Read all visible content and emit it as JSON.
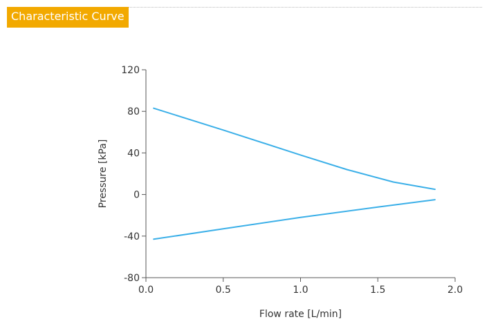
{
  "section": {
    "title": "Characteristic Curve"
  },
  "colors": {
    "accent": "#f2a900",
    "line": "#3aafe8",
    "axis": "#555555"
  },
  "chart_data": {
    "type": "line",
    "title": "",
    "xlabel": "Flow rate [L/min]",
    "ylabel": "Pressure [kPa]",
    "xlim": [
      0.0,
      2.0
    ],
    "ylim": [
      -80,
      120
    ],
    "xticks": [
      0.0,
      0.5,
      1.0,
      1.5,
      2.0
    ],
    "xtick_labels": [
      "0.0",
      "0.5",
      "1.0",
      "1.5",
      "2.0"
    ],
    "yticks": [
      -80,
      -40,
      0,
      40,
      80,
      120
    ],
    "ytick_labels": [
      "-80",
      "-40",
      "0",
      "40",
      "80",
      "120"
    ],
    "grid": false,
    "series": [
      {
        "x": [
          0.05,
          0.5,
          1.0,
          1.3,
          1.6,
          1.87
        ],
        "y": [
          83,
          62,
          38,
          24,
          12,
          5
        ]
      },
      {
        "x": [
          0.05,
          0.5,
          1.0,
          1.5,
          1.87
        ],
        "y": [
          -43,
          -33,
          -22,
          -12,
          -5
        ]
      }
    ]
  }
}
